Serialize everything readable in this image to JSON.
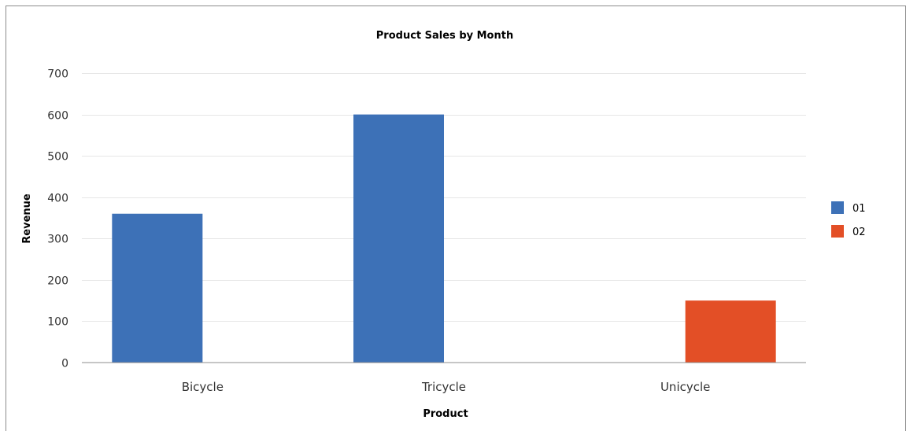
{
  "chart_data": {
    "type": "bar",
    "title": "Product Sales by Month",
    "xlabel": "Product",
    "ylabel": "Revenue",
    "categories": [
      "Bicycle",
      "Tricycle",
      "Unicycle"
    ],
    "series": [
      {
        "name": "01",
        "color": "#3d71b7",
        "values": [
          360,
          600,
          null
        ]
      },
      {
        "name": "02",
        "color": "#e34f26",
        "values": [
          null,
          null,
          150
        ]
      }
    ],
    "ylim": [
      0,
      700
    ],
    "yticks": [
      0,
      100,
      200,
      300,
      400,
      500,
      600,
      700
    ],
    "grid": true,
    "legend_position": "right"
  }
}
